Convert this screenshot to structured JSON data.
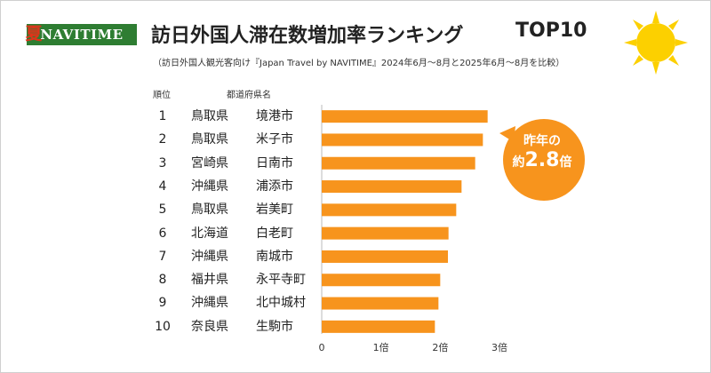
{
  "brand": {
    "logo_text": "NAVITIME",
    "logo_color": "#2e7d32"
  },
  "header": {
    "title": "訪日外国人滞在数増加率ランキング",
    "title_tag": "TOP10",
    "subtitle": "（訪日外国人観光客向け『Japan Travel by NAVITIME』2024年6月～8月と2025年6月～8月を比較）",
    "season_label": "夏"
  },
  "columns": {
    "rank": "順位",
    "location": "都道府県名"
  },
  "callout": {
    "line1": "昨年の",
    "prefix": "約",
    "value": "2.8",
    "suffix": "倍"
  },
  "rows": [
    {
      "rank": "1",
      "prefecture": "鳥取県",
      "city": "境港市"
    },
    {
      "rank": "2",
      "prefecture": "鳥取県",
      "city": "米子市"
    },
    {
      "rank": "3",
      "prefecture": "宮崎県",
      "city": "日南市"
    },
    {
      "rank": "4",
      "prefecture": "沖縄県",
      "city": "浦添市"
    },
    {
      "rank": "5",
      "prefecture": "鳥取県",
      "city": "岩美町"
    },
    {
      "rank": "6",
      "prefecture": "北海道",
      "city": "白老町"
    },
    {
      "rank": "7",
      "prefecture": "沖縄県",
      "city": "南城市"
    },
    {
      "rank": "8",
      "prefecture": "福井県",
      "city": "永平寺町"
    },
    {
      "rank": "9",
      "prefecture": "沖縄県",
      "city": "北中城村"
    },
    {
      "rank": "10",
      "prefecture": "奈良県",
      "city": "生駒市"
    }
  ],
  "chart_data": {
    "type": "bar",
    "orientation": "horizontal",
    "categories": [
      "境港市",
      "米子市",
      "日南市",
      "浦添市",
      "岩美町",
      "白老町",
      "南城市",
      "永平寺町",
      "北中城村",
      "生駒市"
    ],
    "values": [
      2.8,
      2.72,
      2.59,
      2.36,
      2.27,
      2.14,
      2.13,
      2.0,
      1.97,
      1.91
    ],
    "xlim": [
      0,
      3
    ],
    "xticks": [
      "0",
      "1倍",
      "2倍",
      "3倍"
    ],
    "grid": false,
    "bar_color": "#f7941d"
  },
  "colors": {
    "accent": "#f7941d",
    "sun": "#fcd000",
    "season_text": "#e0331a"
  }
}
